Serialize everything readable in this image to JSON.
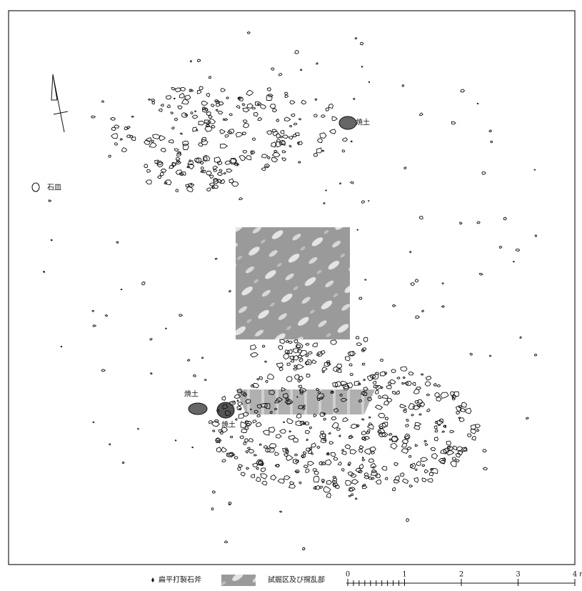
{
  "labels": [
    {
      "text": "焼土"
    },
    {
      "text": "石皿"
    },
    {
      "text": "焼土"
    },
    {
      "text": "焼土"
    }
  ],
  "legend": [
    {
      "text": "扁平打製石斧"
    },
    {
      "text": "試掘区及び撹乱部"
    }
  ],
  "scale": {
    "ticks": [
      "0",
      "1",
      "2",
      "3",
      "4"
    ],
    "unit": "m"
  }
}
